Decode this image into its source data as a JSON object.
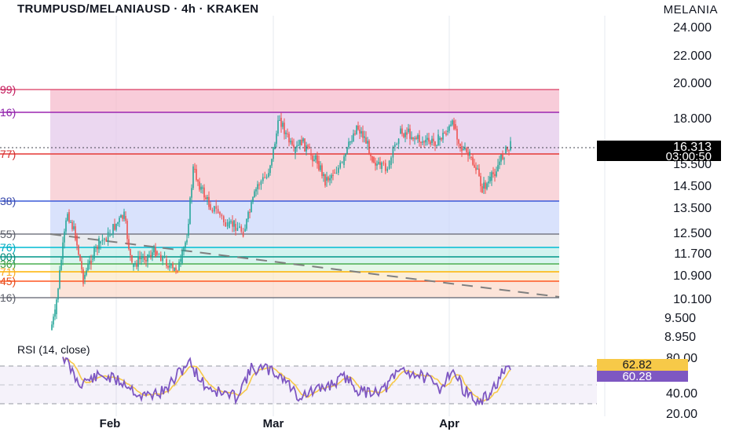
{
  "header": {
    "title": "TRUMPUSD/MELANIAUSD · 4h · KRAKEN",
    "symbol": "MELANIA"
  },
  "colors": {
    "up": "#26a69a",
    "down": "#ef5350",
    "rsi_line": "#7e57c2",
    "rsi_ma": "#f7c948",
    "last_price_bg": "#000000",
    "rsi_tag_bg": "#7e57c2",
    "rsi_ma_tag_bg": "#f7c948"
  },
  "price_axis": {
    "ticks": [
      "24.000",
      "22.000",
      "20.000",
      "18.000",
      "16.313",
      "15.500",
      "14.500",
      "13.500",
      "12.500",
      "11.700",
      "10.900",
      "10.100",
      "9.500",
      "8.950"
    ],
    "last_price": "16.313",
    "countdown": "03:00:50"
  },
  "fib_labels": [
    "99)",
    "16)",
    "77)",
    "38)",
    "55)",
    "76)",
    "00)",
    "36)",
    "71)",
    "45)",
    "16)"
  ],
  "time_axis": [
    "Feb",
    "Mar",
    "Apr"
  ],
  "rsi": {
    "label": "RSI (14, close)",
    "ticks": [
      "80.00",
      "40.00",
      "20.00"
    ],
    "value_ma": "62.82",
    "value": "60.28"
  }
}
